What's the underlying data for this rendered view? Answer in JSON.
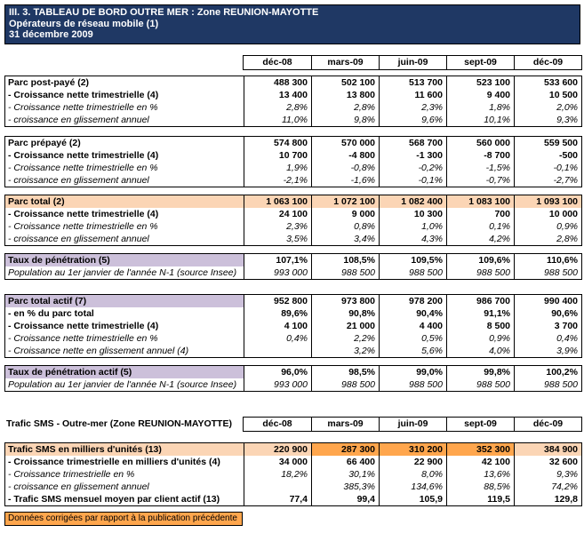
{
  "colors": {
    "navy": "#1F3864",
    "peach": "#FBD5B5",
    "orange": "#FFA64D",
    "lavender": "#CCC0DA"
  },
  "header": {
    "line1": "III. 3. TABLEAU DE BORD OUTRE MER : Zone REUNION-MAYOTTE",
    "line2": "Opérateurs de réseau mobile (1)",
    "line3": "31 décembre  2009"
  },
  "columns": [
    "déc-08",
    "mars-09",
    "juin-09",
    "sept-09",
    "déc-09"
  ],
  "sections": {
    "columns_top": {
      "label": "",
      "values": [
        "déc-08",
        "mars-09",
        "juin-09",
        "sept-09",
        "déc-09"
      ]
    },
    "parc_postpaye": {
      "rows": [
        {
          "label": "Parc post-payé (2)",
          "style": "bold",
          "values": [
            "488 300",
            "502 100",
            "513 700",
            "523 100",
            "533 600"
          ]
        },
        {
          "label": "- Croissance nette trimestrielle (4)",
          "style": "bold",
          "values": [
            "13 400",
            "13 800",
            "11 600",
            "9 400",
            "10 500"
          ]
        },
        {
          "label": "- Croissance nette trimestrielle en %",
          "style": "italic",
          "values": [
            "2,8%",
            "2,8%",
            "2,3%",
            "1,8%",
            "2,0%"
          ]
        },
        {
          "label": "- croissance en glissement annuel",
          "style": "italic",
          "values": [
            "11,0%",
            "9,8%",
            "9,6%",
            "10,1%",
            "9,3%"
          ]
        }
      ]
    },
    "parc_prepaye": {
      "rows": [
        {
          "label": "Parc prépayé (2)",
          "style": "bold",
          "values": [
            "574 800",
            "570 000",
            "568 700",
            "560 000",
            "559 500"
          ]
        },
        {
          "label": "- Croissance nette trimestrielle (4)",
          "style": "bold",
          "values": [
            "10 700",
            "-4 800",
            "-1 300",
            "-8 700",
            "-500"
          ]
        },
        {
          "label": "- Croissance nette trimestrielle en %",
          "style": "italic",
          "values": [
            "1,9%",
            "-0,8%",
            "-0,2%",
            "-1,5%",
            "-0,1%"
          ]
        },
        {
          "label": "- croissance en glissement annuel",
          "style": "italic",
          "values": [
            "-2,1%",
            "-1,6%",
            "-0,1%",
            "-0,7%",
            "-2,7%"
          ]
        }
      ]
    },
    "parc_total": {
      "rows": [
        {
          "label": "Parc total (2)",
          "style": "bold",
          "row_bg": "peach",
          "label_bg": "peach",
          "values": [
            "1 063 100",
            "1 072 100",
            "1 082 400",
            "1 083 100",
            "1 093 100"
          ]
        },
        {
          "label": "- Croissance nette trimestrielle (4)",
          "style": "bold",
          "values": [
            "24 100",
            "9 000",
            "10 300",
            "700",
            "10 000"
          ]
        },
        {
          "label": "- Croissance nette trimestrielle en %",
          "style": "italic",
          "values": [
            "2,3%",
            "0,8%",
            "1,0%",
            "0,1%",
            "0,9%"
          ]
        },
        {
          "label": "- croissance en glissement annuel",
          "style": "italic",
          "values": [
            "3,5%",
            "3,4%",
            "4,3%",
            "4,2%",
            "2,8%"
          ]
        }
      ]
    },
    "taux_penetration": {
      "rows": [
        {
          "label": "Taux de pénétration (5)",
          "style": "bold",
          "label_bg": "lavender",
          "values": [
            "107,1%",
            "108,5%",
            "109,5%",
            "109,6%",
            "110,6%"
          ]
        },
        {
          "label": "Population au 1er janvier de l'année N-1 (source Insee)",
          "style": "italic",
          "values": [
            "993 000",
            "988 500",
            "988 500",
            "988 500",
            "988 500"
          ]
        }
      ]
    },
    "parc_total_actif": {
      "rows": [
        {
          "label": "Parc total actif (7)",
          "style": "bold",
          "label_bg": "lavender",
          "values": [
            "952 800",
            "973 800",
            "978 200",
            "986 700",
            "990 400"
          ]
        },
        {
          "label": "- en % du parc total",
          "style": "bold",
          "values": [
            "89,6%",
            "90,8%",
            "90,4%",
            "91,1%",
            "90,6%"
          ]
        },
        {
          "label": "- Croissance nette trimestrielle (4)",
          "style": "bold",
          "values": [
            "4 100",
            "21 000",
            "4 400",
            "8 500",
            "3 700"
          ]
        },
        {
          "label": "- Croissance nette trimestrielle en %",
          "style": "italic",
          "values": [
            "0,4%",
            "2,2%",
            "0,5%",
            "0,9%",
            "0,4%"
          ]
        },
        {
          "label": "- Croissance nette en glissement annuel (4)",
          "style": "italic",
          "values": [
            "",
            "3,2%",
            "5,6%",
            "4,0%",
            "3,9%"
          ]
        }
      ]
    },
    "taux_penetration_actif": {
      "rows": [
        {
          "label": "Taux de pénétration actif (5)",
          "style": "bold",
          "label_bg": "lavender",
          "values": [
            "96,0%",
            "98,5%",
            "99,0%",
            "99,8%",
            "100,2%"
          ]
        },
        {
          "label": "Population au 1er janvier de l'année N-1 (source Insee)",
          "style": "italic",
          "values": [
            "993 000",
            "988 500",
            "988 500",
            "988 500",
            "988 500"
          ]
        }
      ]
    },
    "sms_header": {
      "label": "Trafic SMS - Outre-mer (Zone REUNION-MAYOTTE)",
      "values": [
        "déc-08",
        "mars-09",
        "juin-09",
        "sept-09",
        "déc-09"
      ]
    },
    "trafic_sms": {
      "rows": [
        {
          "label": "Trafic SMS en milliers d'unités (13)",
          "style": "bold",
          "label_bg": "peach",
          "value_bgs": [
            "peach",
            "orange",
            "orange",
            "orange",
            "peach"
          ],
          "values": [
            "220 900",
            "287 300",
            "310 200",
            "352 300",
            "384 900"
          ]
        },
        {
          "label": "- Croissance trimestrielle en milliers d'unités (4)",
          "style": "bold",
          "values": [
            "34 000",
            "66 400",
            "22 900",
            "42 100",
            "32 600"
          ]
        },
        {
          "label": "- Croissance trimestrielle en %",
          "style": "italic",
          "values": [
            "18,2%",
            "30,1%",
            "8,0%",
            "13,6%",
            "9,3%"
          ]
        },
        {
          "label": "- croissance en glissement annuel",
          "style": "italic",
          "values": [
            "",
            "385,3%",
            "134,6%",
            "88,5%",
            "74,2%"
          ]
        },
        {
          "label": "- Trafic SMS mensuel moyen par client actif (13)",
          "style": "bold",
          "values": [
            "77,4",
            "99,4",
            "105,9",
            "119,5",
            "129,8"
          ]
        }
      ]
    }
  },
  "footnote": "Données corrigées par rapport à la publication précédente"
}
